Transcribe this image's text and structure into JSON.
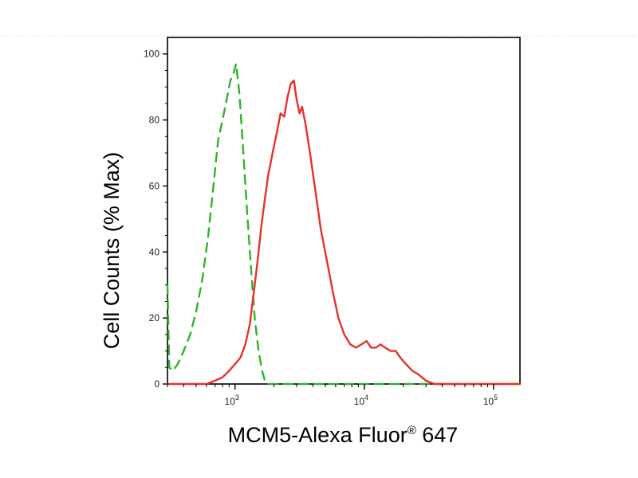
{
  "chart_data": {
    "type": "line",
    "title": "",
    "xlabel_main": "MCM5-Alexa Fluor",
    "xlabel_mark": "®",
    "xlabel_suffix": " 647",
    "ylabel": "Cell Counts (% Max)",
    "xscale": "log",
    "xlim": [
      300,
      160000
    ],
    "ylim": [
      0,
      105
    ],
    "y_ticks": [
      0,
      20,
      40,
      60,
      80,
      100
    ],
    "y_tick_labels": [
      "0",
      "20",
      "40",
      "60",
      "80",
      "100"
    ],
    "x_ticks": [
      {
        "value": 1000,
        "base": "10",
        "exp": "3"
      },
      {
        "value": 10000,
        "base": "10",
        "exp": "4"
      },
      {
        "value": 100000,
        "base": "10",
        "exp": "5"
      }
    ],
    "grid": false,
    "legend": "none",
    "series": [
      {
        "color": "#2bb52b",
        "style": "dashed",
        "points": [
          [
            300,
            30
          ],
          [
            310,
            5
          ],
          [
            330,
            4
          ],
          [
            360,
            6
          ],
          [
            400,
            10
          ],
          [
            450,
            15
          ],
          [
            500,
            22
          ],
          [
            560,
            32
          ],
          [
            620,
            45
          ],
          [
            680,
            60
          ],
          [
            740,
            74
          ],
          [
            800,
            80
          ],
          [
            860,
            86
          ],
          [
            920,
            92
          ],
          [
            970,
            94
          ],
          [
            1020,
            97
          ],
          [
            1080,
            88
          ],
          [
            1150,
            72
          ],
          [
            1240,
            52
          ],
          [
            1330,
            35
          ],
          [
            1420,
            20
          ],
          [
            1520,
            10
          ],
          [
            1620,
            4
          ],
          [
            1700,
            1
          ],
          [
            1800,
            0
          ],
          [
            3000,
            0
          ],
          [
            8000,
            0
          ],
          [
            20000,
            0
          ],
          [
            60000,
            0
          ],
          [
            160000,
            0
          ]
        ]
      },
      {
        "color": "#e8302a",
        "style": "solid",
        "points": [
          [
            300,
            0
          ],
          [
            600,
            0
          ],
          [
            700,
            1
          ],
          [
            800,
            2
          ],
          [
            900,
            4
          ],
          [
            1000,
            6
          ],
          [
            1100,
            8
          ],
          [
            1200,
            12
          ],
          [
            1300,
            18
          ],
          [
            1400,
            28
          ],
          [
            1500,
            38
          ],
          [
            1600,
            48
          ],
          [
            1700,
            56
          ],
          [
            1800,
            63
          ],
          [
            1950,
            70
          ],
          [
            2100,
            76
          ],
          [
            2250,
            82
          ],
          [
            2400,
            81
          ],
          [
            2550,
            87
          ],
          [
            2700,
            91
          ],
          [
            2850,
            92
          ],
          [
            3000,
            86
          ],
          [
            3150,
            82
          ],
          [
            3300,
            84
          ],
          [
            3500,
            79
          ],
          [
            3800,
            70
          ],
          [
            4200,
            58
          ],
          [
            4600,
            47
          ],
          [
            5100,
            38
          ],
          [
            5700,
            28
          ],
          [
            6300,
            20
          ],
          [
            7000,
            15
          ],
          [
            7800,
            12
          ],
          [
            8600,
            11
          ],
          [
            9500,
            12
          ],
          [
            10400,
            13
          ],
          [
            11300,
            11
          ],
          [
            12300,
            11
          ],
          [
            13300,
            12
          ],
          [
            14500,
            11
          ],
          [
            16000,
            10
          ],
          [
            17500,
            10
          ],
          [
            19000,
            8
          ],
          [
            21000,
            6
          ],
          [
            23500,
            4
          ],
          [
            26000,
            3
          ],
          [
            30000,
            1
          ],
          [
            35000,
            0
          ],
          [
            60000,
            0
          ],
          [
            160000,
            0
          ]
        ]
      }
    ]
  }
}
